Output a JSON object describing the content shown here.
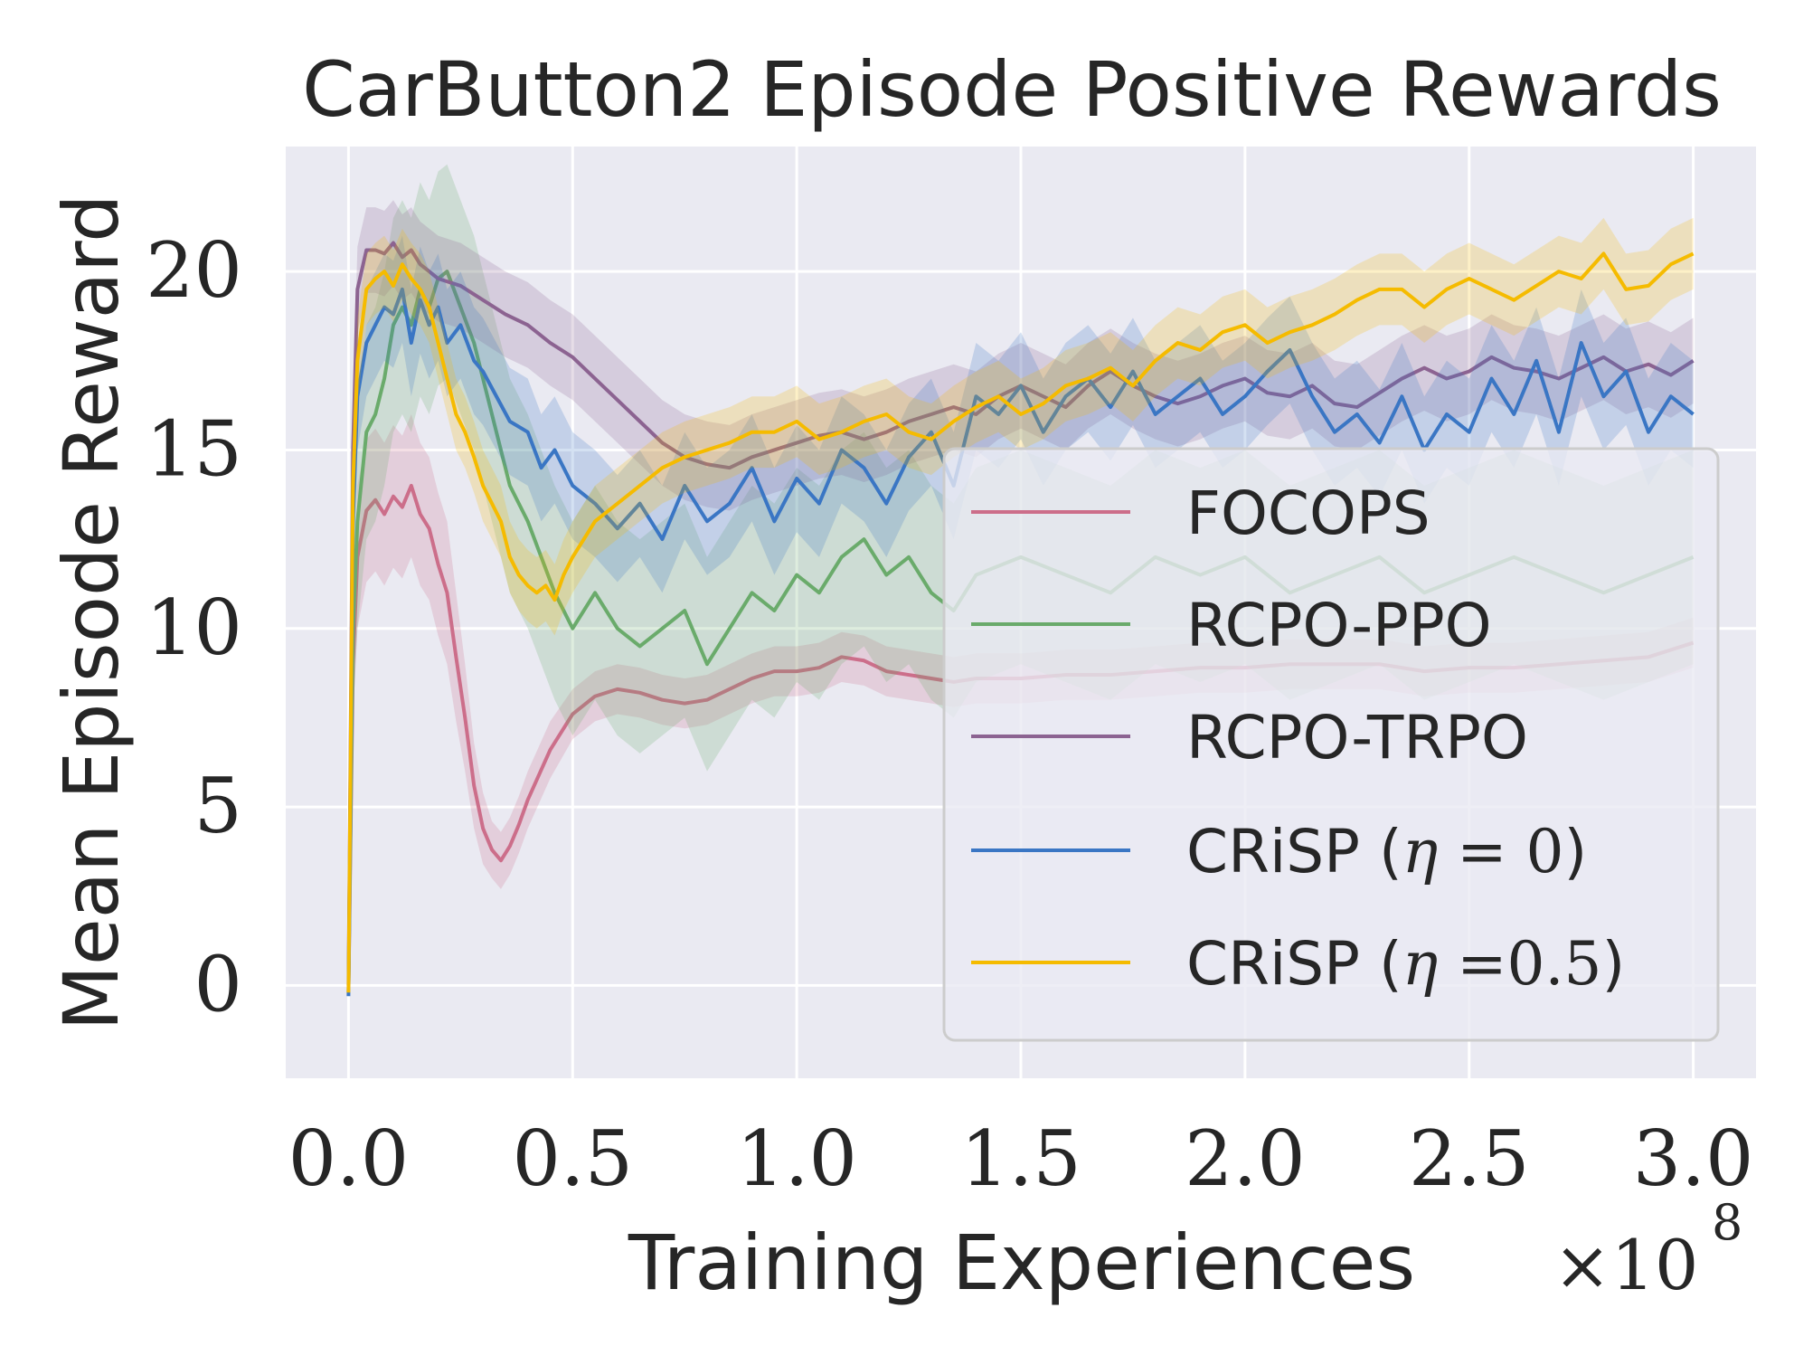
{
  "chart_data": {
    "type": "line",
    "title": "CarButton2 Episode Positive Rewards",
    "xlabel": "Training Experiences",
    "ylabel": "Mean Episode Reward",
    "x_scale_label": {
      "base": "×10",
      "exponent": "8"
    },
    "xlim": [
      -0.14,
      3.14
    ],
    "ylim": [
      -2.6,
      23.5
    ],
    "xticks": [
      0.0,
      0.5,
      1.0,
      1.5,
      2.0,
      2.5,
      3.0
    ],
    "xtick_labels": [
      "0.0",
      "0.5",
      "1.0",
      "1.5",
      "2.0",
      "2.5",
      "3.0"
    ],
    "yticks": [
      0,
      5,
      10,
      15,
      20
    ],
    "ytick_labels": [
      "0",
      "5",
      "10",
      "15",
      "20"
    ],
    "grid": true,
    "background": "#eaeaf2",
    "legend_position": "lower-right",
    "series": [
      {
        "name": "FOCOPS",
        "color": "#cc6e8a",
        "x": [
          0.0,
          0.01,
          0.02,
          0.04,
          0.06,
          0.08,
          0.1,
          0.12,
          0.14,
          0.16,
          0.18,
          0.2,
          0.22,
          0.24,
          0.26,
          0.28,
          0.3,
          0.32,
          0.34,
          0.36,
          0.38,
          0.4,
          0.45,
          0.5,
          0.55,
          0.6,
          0.65,
          0.7,
          0.75,
          0.8,
          0.85,
          0.9,
          0.95,
          1.0,
          1.05,
          1.1,
          1.15,
          1.2,
          1.25,
          1.3,
          1.35,
          1.4,
          1.5,
          1.6,
          1.7,
          1.8,
          1.9,
          2.0,
          2.1,
          2.2,
          2.3,
          2.4,
          2.5,
          2.6,
          2.7,
          2.8,
          2.9,
          3.0
        ],
        "y": [
          -0.2,
          9.0,
          12.0,
          13.3,
          13.6,
          13.2,
          13.7,
          13.4,
          14.0,
          13.2,
          12.8,
          11.8,
          11.0,
          9.2,
          7.5,
          5.6,
          4.4,
          3.8,
          3.5,
          3.9,
          4.5,
          5.2,
          6.6,
          7.6,
          8.1,
          8.3,
          8.2,
          8.0,
          7.9,
          8.0,
          8.3,
          8.6,
          8.8,
          8.8,
          8.9,
          9.2,
          9.1,
          8.8,
          8.7,
          8.6,
          8.5,
          8.6,
          8.6,
          8.7,
          8.7,
          8.8,
          8.9,
          8.9,
          9.0,
          9.0,
          9.0,
          8.8,
          8.9,
          8.9,
          9.0,
          9.1,
          9.2,
          9.6
        ],
        "band": [
          0.0,
          1.5,
          2.0,
          2.0,
          2.0,
          2.0,
          2.0,
          2.0,
          2.0,
          2.0,
          2.0,
          2.0,
          2.0,
          1.8,
          1.5,
          1.2,
          1.0,
          0.8,
          0.8,
          0.8,
          0.8,
          0.8,
          0.8,
          0.7,
          0.7,
          0.7,
          0.7,
          0.7,
          0.7,
          0.7,
          0.7,
          0.7,
          0.7,
          0.7,
          0.7,
          0.7,
          0.7,
          0.7,
          0.7,
          0.7,
          0.7,
          0.7,
          0.7,
          0.7,
          0.7,
          0.7,
          0.7,
          0.7,
          0.7,
          0.7,
          0.7,
          0.7,
          0.7,
          0.7,
          0.7,
          0.7,
          0.7,
          0.7
        ]
      },
      {
        "name": "RCPO-PPO",
        "color": "#6aab6b",
        "x": [
          0.0,
          0.01,
          0.02,
          0.04,
          0.06,
          0.08,
          0.1,
          0.12,
          0.14,
          0.16,
          0.18,
          0.2,
          0.22,
          0.25,
          0.28,
          0.3,
          0.33,
          0.36,
          0.4,
          0.43,
          0.46,
          0.5,
          0.55,
          0.6,
          0.65,
          0.7,
          0.75,
          0.8,
          0.85,
          0.9,
          0.95,
          1.0,
          1.05,
          1.1,
          1.15,
          1.2,
          1.25,
          1.3,
          1.35,
          1.4,
          1.5,
          1.6,
          1.7,
          1.8,
          1.9,
          2.0,
          2.1,
          2.2,
          2.3,
          2.4,
          2.5,
          2.6,
          2.7,
          2.8,
          2.9,
          3.0
        ],
        "y": [
          -0.2,
          10.0,
          13.0,
          15.5,
          16.0,
          17.0,
          18.5,
          19.0,
          18.5,
          19.5,
          19.0,
          19.8,
          20.0,
          19.0,
          18.0,
          17.0,
          15.5,
          14.0,
          13.0,
          12.0,
          11.0,
          10.0,
          11.0,
          10.0,
          9.5,
          10.0,
          10.5,
          9.0,
          10.0,
          11.0,
          10.5,
          11.5,
          11.0,
          12.0,
          12.5,
          11.5,
          12.0,
          11.0,
          10.5,
          11.5,
          12.0,
          11.5,
          11.0,
          12.0,
          11.5,
          12.0,
          11.0,
          11.5,
          12.0,
          11.0,
          11.5,
          12.0,
          11.5,
          11.0,
          11.5,
          12.0
        ],
        "band": [
          0.0,
          2.5,
          3.0,
          3.0,
          3.0,
          3.0,
          3.0,
          3.0,
          3.0,
          3.0,
          3.0,
          3.0,
          3.0,
          3.0,
          3.0,
          3.0,
          3.0,
          3.0,
          3.0,
          3.0,
          3.0,
          3.0,
          3.0,
          3.0,
          3.0,
          3.0,
          3.0,
          3.0,
          3.0,
          3.0,
          3.0,
          3.0,
          3.0,
          3.0,
          3.0,
          3.0,
          3.0,
          3.0,
          3.0,
          3.0,
          3.0,
          3.0,
          3.0,
          3.0,
          3.0,
          3.0,
          3.0,
          3.0,
          3.0,
          3.0,
          3.0,
          3.0,
          3.0,
          3.0,
          3.0,
          3.0
        ]
      },
      {
        "name": "RCPO-TRPO",
        "color": "#8c6391",
        "x": [
          0.0,
          0.01,
          0.02,
          0.04,
          0.06,
          0.08,
          0.1,
          0.12,
          0.14,
          0.16,
          0.18,
          0.2,
          0.25,
          0.3,
          0.35,
          0.4,
          0.45,
          0.5,
          0.55,
          0.6,
          0.65,
          0.7,
          0.75,
          0.8,
          0.85,
          0.9,
          0.95,
          1.0,
          1.05,
          1.1,
          1.15,
          1.2,
          1.25,
          1.3,
          1.35,
          1.4,
          1.45,
          1.5,
          1.55,
          1.6,
          1.65,
          1.7,
          1.75,
          1.8,
          1.85,
          1.9,
          1.95,
          2.0,
          2.05,
          2.1,
          2.15,
          2.2,
          2.25,
          2.3,
          2.35,
          2.4,
          2.45,
          2.5,
          2.55,
          2.6,
          2.65,
          2.7,
          2.75,
          2.8,
          2.85,
          2.9,
          2.95,
          3.0
        ],
        "y": [
          0.0,
          15.0,
          19.5,
          20.6,
          20.6,
          20.5,
          20.8,
          20.4,
          20.6,
          20.2,
          20.0,
          19.8,
          19.6,
          19.2,
          18.8,
          18.5,
          18.0,
          17.6,
          17.0,
          16.4,
          15.8,
          15.2,
          14.8,
          14.6,
          14.5,
          14.8,
          15.0,
          15.2,
          15.4,
          15.5,
          15.3,
          15.5,
          15.8,
          16.0,
          16.2,
          16.0,
          16.5,
          16.8,
          16.5,
          16.2,
          16.8,
          17.2,
          16.8,
          16.5,
          16.3,
          16.5,
          16.8,
          17.0,
          16.6,
          16.5,
          16.8,
          16.3,
          16.2,
          16.6,
          17.0,
          17.3,
          17.0,
          17.2,
          17.6,
          17.3,
          17.2,
          17.0,
          17.3,
          17.6,
          17.2,
          17.4,
          17.1,
          17.5
        ],
        "band": [
          0.0,
          1.5,
          1.2,
          1.2,
          1.2,
          1.2,
          1.2,
          1.2,
          1.2,
          1.2,
          1.2,
          1.2,
          1.2,
          1.2,
          1.2,
          1.2,
          1.2,
          1.2,
          1.2,
          1.2,
          1.2,
          1.2,
          1.2,
          1.2,
          1.2,
          1.2,
          1.2,
          1.2,
          1.2,
          1.2,
          1.2,
          1.2,
          1.2,
          1.2,
          1.2,
          1.2,
          1.2,
          1.2,
          1.2,
          1.2,
          1.2,
          1.2,
          1.2,
          1.2,
          1.2,
          1.2,
          1.2,
          1.2,
          1.2,
          1.2,
          1.2,
          1.2,
          1.2,
          1.2,
          1.2,
          1.2,
          1.2,
          1.2,
          1.2,
          1.2,
          1.2,
          1.2,
          1.2,
          1.2,
          1.2,
          1.2,
          1.2,
          1.2
        ]
      },
      {
        "name": "CRiSP (η = 0)",
        "color": "#3a76c4",
        "x": [
          0.0,
          0.01,
          0.02,
          0.04,
          0.06,
          0.08,
          0.1,
          0.12,
          0.14,
          0.16,
          0.18,
          0.2,
          0.22,
          0.25,
          0.28,
          0.3,
          0.33,
          0.36,
          0.4,
          0.43,
          0.46,
          0.5,
          0.55,
          0.6,
          0.65,
          0.7,
          0.75,
          0.8,
          0.85,
          0.9,
          0.95,
          1.0,
          1.05,
          1.1,
          1.15,
          1.2,
          1.25,
          1.3,
          1.35,
          1.4,
          1.45,
          1.5,
          1.55,
          1.6,
          1.65,
          1.7,
          1.75,
          1.8,
          1.85,
          1.9,
          1.95,
          2.0,
          2.05,
          2.1,
          2.15,
          2.2,
          2.25,
          2.3,
          2.35,
          2.4,
          2.45,
          2.5,
          2.55,
          2.6,
          2.65,
          2.7,
          2.75,
          2.8,
          2.85,
          2.9,
          2.95,
          3.0
        ],
        "y": [
          -0.3,
          13.0,
          16.5,
          18.0,
          18.5,
          19.0,
          18.8,
          19.5,
          18.0,
          19.2,
          18.5,
          19.0,
          18.0,
          18.5,
          17.5,
          17.2,
          16.5,
          15.8,
          15.5,
          14.5,
          15.0,
          14.0,
          13.5,
          12.8,
          13.5,
          12.5,
          14.0,
          13.0,
          13.5,
          14.5,
          13.0,
          14.2,
          13.5,
          15.0,
          14.5,
          13.5,
          14.8,
          15.5,
          14.0,
          16.5,
          16.0,
          16.8,
          15.5,
          16.5,
          17.0,
          16.2,
          17.2,
          16.0,
          16.5,
          17.0,
          16.0,
          16.5,
          17.2,
          17.8,
          16.5,
          15.5,
          16.0,
          15.2,
          16.5,
          15.0,
          16.0,
          15.5,
          17.0,
          16.0,
          17.5,
          15.5,
          18.0,
          16.5,
          17.2,
          15.5,
          16.5,
          16.0
        ],
        "band": [
          0.0,
          2.0,
          1.5,
          1.5,
          1.5,
          1.5,
          1.5,
          1.5,
          1.5,
          1.5,
          1.5,
          1.5,
          1.5,
          1.5,
          1.5,
          1.5,
          1.5,
          1.5,
          1.5,
          1.5,
          1.5,
          1.5,
          1.5,
          1.5,
          1.5,
          1.5,
          1.5,
          1.5,
          1.5,
          1.5,
          1.5,
          1.5,
          1.5,
          1.5,
          1.5,
          1.5,
          1.5,
          1.5,
          1.5,
          1.5,
          1.5,
          1.5,
          1.5,
          1.5,
          1.5,
          1.5,
          1.5,
          1.5,
          1.5,
          1.5,
          1.5,
          1.5,
          1.5,
          1.5,
          1.5,
          1.5,
          1.5,
          1.5,
          1.5,
          1.5,
          1.5,
          1.5,
          1.5,
          1.5,
          1.5,
          1.5,
          1.5,
          1.5,
          1.5,
          1.5,
          1.5,
          1.5
        ]
      },
      {
        "name": "CRiSP (η =0.5)",
        "color": "#f5bb00",
        "x": [
          0.0,
          0.01,
          0.02,
          0.04,
          0.06,
          0.08,
          0.1,
          0.12,
          0.14,
          0.16,
          0.18,
          0.2,
          0.22,
          0.24,
          0.26,
          0.28,
          0.3,
          0.32,
          0.34,
          0.36,
          0.38,
          0.4,
          0.42,
          0.44,
          0.46,
          0.48,
          0.5,
          0.55,
          0.6,
          0.65,
          0.7,
          0.75,
          0.8,
          0.85,
          0.9,
          0.95,
          1.0,
          1.05,
          1.1,
          1.15,
          1.2,
          1.25,
          1.3,
          1.35,
          1.4,
          1.45,
          1.5,
          1.55,
          1.6,
          1.65,
          1.7,
          1.75,
          1.8,
          1.85,
          1.9,
          1.95,
          2.0,
          2.05,
          2.1,
          2.15,
          2.2,
          2.25,
          2.3,
          2.35,
          2.4,
          2.45,
          2.5,
          2.55,
          2.6,
          2.65,
          2.7,
          2.75,
          2.8,
          2.85,
          2.9,
          2.95,
          3.0
        ],
        "y": [
          -0.2,
          14.0,
          17.5,
          19.5,
          19.8,
          20.0,
          19.6,
          20.2,
          19.8,
          19.5,
          19.0,
          18.0,
          17.0,
          16.0,
          15.5,
          14.8,
          14.0,
          13.5,
          13.0,
          12.0,
          11.5,
          11.2,
          11.0,
          11.2,
          10.8,
          11.5,
          12.0,
          13.0,
          13.5,
          14.0,
          14.5,
          14.8,
          15.0,
          15.2,
          15.5,
          15.5,
          15.8,
          15.3,
          15.5,
          15.8,
          16.0,
          15.5,
          15.3,
          15.8,
          16.2,
          16.5,
          16.0,
          16.3,
          16.8,
          17.0,
          17.3,
          16.8,
          17.5,
          18.0,
          17.8,
          18.3,
          18.5,
          18.0,
          18.3,
          18.5,
          18.8,
          19.2,
          19.5,
          19.5,
          19.0,
          19.5,
          19.8,
          19.5,
          19.2,
          19.6,
          20.0,
          19.8,
          20.5,
          19.5,
          19.6,
          20.2,
          20.5
        ],
        "band": [
          0.0,
          2.0,
          1.2,
          1.0,
          1.0,
          1.0,
          1.0,
          1.0,
          1.0,
          1.0,
          1.0,
          1.0,
          1.0,
          1.0,
          1.0,
          1.0,
          1.0,
          1.0,
          1.0,
          1.0,
          1.0,
          1.0,
          1.0,
          1.0,
          1.0,
          1.0,
          1.0,
          1.0,
          1.0,
          1.0,
          1.0,
          1.0,
          1.0,
          1.0,
          1.0,
          1.0,
          1.0,
          1.0,
          1.0,
          1.0,
          1.0,
          1.0,
          1.0,
          1.0,
          1.0,
          1.0,
          1.0,
          1.0,
          1.0,
          1.0,
          1.0,
          1.0,
          1.0,
          1.0,
          1.0,
          1.0,
          1.0,
          1.0,
          1.0,
          1.0,
          1.0,
          1.0,
          1.0,
          1.0,
          1.0,
          1.0,
          1.0,
          1.0,
          1.0,
          1.0,
          1.0,
          1.0,
          1.0,
          1.0,
          1.0,
          1.0,
          1.0
        ]
      }
    ],
    "legend": [
      {
        "label": "FOCOPS",
        "color": "#cc6e8a"
      },
      {
        "label": "RCPO-PPO",
        "color": "#6aab6b"
      },
      {
        "label": "RCPO-TRPO",
        "color": "#8c6391"
      },
      {
        "label_prefix": "CRiSP (",
        "math_var": "η",
        "math_rest": " = 0",
        "label_suffix": ")",
        "color": "#3a76c4"
      },
      {
        "label_prefix": "CRiSP (",
        "math_var": "η",
        "math_rest": " =0.5",
        "label_suffix": ")",
        "color": "#f5bb00"
      }
    ]
  }
}
